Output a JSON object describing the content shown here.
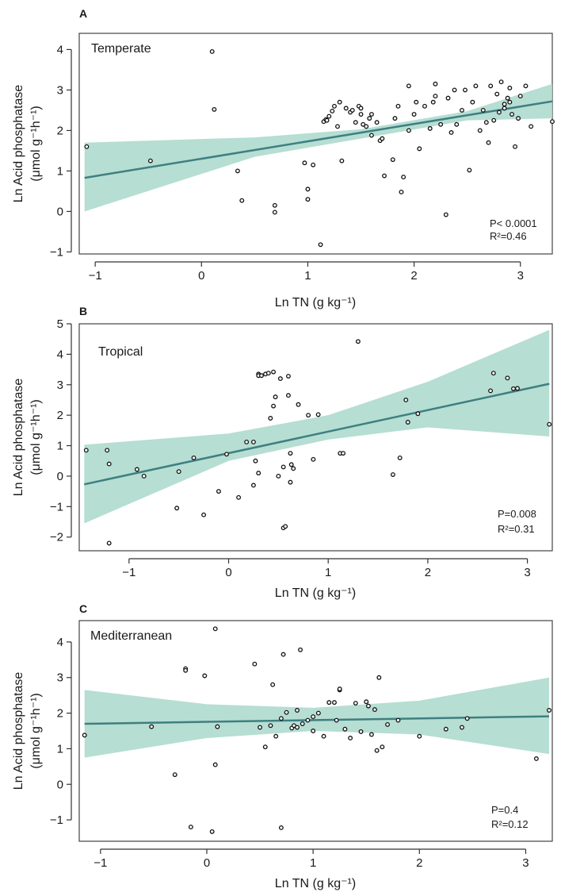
{
  "chart_data": [
    {
      "type": "scatter",
      "panel_letter": "A",
      "region_label": "Temperate",
      "xlabel": "Ln TN (g kg⁻¹)",
      "ylabel_line1": "Ln Acid phosphatase",
      "ylabel_line2": "(μmol g⁻¹h⁻¹)",
      "xlim": [
        -1.15,
        3.3
      ],
      "ylim": [
        -1.05,
        4.4
      ],
      "x_ticks": [
        -1,
        0,
        1,
        2,
        3
      ],
      "y_ticks": [
        -1,
        0,
        1,
        2,
        3,
        4
      ],
      "stat_p": "P< 0.0001",
      "stat_r2": "R²=0.46",
      "fit": {
        "x0": -1.1,
        "y0": 0.83,
        "x1": 3.3,
        "y1": 2.72
      },
      "ci_upper": [
        [
          -1.1,
          1.7
        ],
        [
          0.5,
          1.83
        ],
        [
          1.5,
          2.03
        ],
        [
          2.5,
          2.48
        ],
        [
          3.3,
          3.15
        ]
      ],
      "ci_lower": [
        [
          -1.1,
          0.0
        ],
        [
          0.5,
          1.35
        ],
        [
          1.5,
          1.8
        ],
        [
          2.5,
          2.25
        ],
        [
          3.3,
          2.3
        ]
      ],
      "grid": false,
      "points": {
        "x": [
          -1.08,
          -0.48,
          0.1,
          0.12,
          0.34,
          0.38,
          0.69,
          0.69,
          0.97,
          1.0,
          1.0,
          1.05,
          1.12,
          1.15,
          1.17,
          1.18,
          1.2,
          1.23,
          1.25,
          1.28,
          1.32,
          1.36,
          1.4,
          1.42,
          1.45,
          1.48,
          1.5,
          1.52,
          1.55,
          1.58,
          1.6,
          1.65,
          1.68,
          1.7,
          1.72,
          1.8,
          1.82,
          1.85,
          1.88,
          1.9,
          1.95,
          2.0,
          2.02,
          2.05,
          2.1,
          2.15,
          2.18,
          2.2,
          2.25,
          2.3,
          2.32,
          2.35,
          2.38,
          2.45,
          2.48,
          2.52,
          2.55,
          2.58,
          2.62,
          2.65,
          2.68,
          2.72,
          2.75,
          2.78,
          2.8,
          2.82,
          2.85,
          2.88,
          2.9,
          2.92,
          2.95,
          2.98,
          3.0,
          3.05,
          3.1,
          3.3,
          2.7,
          2.4,
          2.2,
          1.95,
          1.3,
          1.5,
          1.6,
          2.85,
          2.9
        ],
        "y": [
          1.6,
          1.25,
          3.95,
          2.52,
          1.0,
          0.27,
          0.15,
          -0.02,
          1.2,
          0.55,
          0.3,
          1.15,
          -0.82,
          2.22,
          2.27,
          2.25,
          2.35,
          2.48,
          2.6,
          2.1,
          1.25,
          2.55,
          2.45,
          2.5,
          2.2,
          2.6,
          2.4,
          2.15,
          2.1,
          2.3,
          2.4,
          2.2,
          1.75,
          1.8,
          0.88,
          1.28,
          2.3,
          2.6,
          0.48,
          0.85,
          2.0,
          2.4,
          2.7,
          1.55,
          2.6,
          2.05,
          2.7,
          2.85,
          2.15,
          -0.08,
          2.8,
          1.95,
          3.0,
          2.5,
          3.0,
          1.02,
          2.7,
          3.1,
          2.0,
          2.5,
          2.2,
          3.1,
          2.25,
          2.9,
          2.45,
          3.2,
          2.55,
          2.8,
          2.7,
          2.4,
          1.6,
          2.3,
          2.85,
          3.1,
          2.1,
          2.22,
          1.7,
          2.15,
          3.15,
          3.1,
          2.7,
          2.55,
          1.88,
          2.65,
          3.05
        ]
      }
    },
    {
      "type": "scatter",
      "panel_letter": "B",
      "region_label": "Tropical",
      "xlabel": "Ln TN (g kg⁻¹)",
      "ylabel_line1": "Ln Acid phosphatase",
      "ylabel_line2": "(μmol g⁻¹h⁻¹)",
      "xlim": [
        -1.5,
        3.25
      ],
      "ylim": [
        -2.45,
        5.0
      ],
      "x_ticks": [
        -1,
        0,
        1,
        2,
        3
      ],
      "y_ticks": [
        -2,
        -1,
        0,
        1,
        2,
        3,
        4,
        5
      ],
      "stat_p": "P=0.008",
      "stat_r2": "R²=0.31",
      "fit": {
        "x0": -1.45,
        "y0": -0.27,
        "x1": 3.22,
        "y1": 3.03
      },
      "ci_upper": [
        [
          -1.45,
          1.03
        ],
        [
          0.0,
          1.4
        ],
        [
          1.0,
          2.0
        ],
        [
          2.0,
          3.1
        ],
        [
          3.22,
          4.8
        ]
      ],
      "ci_lower": [
        [
          -1.45,
          -1.55
        ],
        [
          0.0,
          0.5
        ],
        [
          1.0,
          1.2
        ],
        [
          2.0,
          1.6
        ],
        [
          3.22,
          1.3
        ]
      ],
      "grid": false,
      "points": {
        "x": [
          -1.43,
          -1.22,
          -1.2,
          -1.2,
          -0.92,
          -0.85,
          -0.52,
          -0.5,
          -0.35,
          -0.25,
          -0.1,
          -0.02,
          0.1,
          0.18,
          0.25,
          0.25,
          0.27,
          0.3,
          0.3,
          0.3,
          0.33,
          0.37,
          0.4,
          0.42,
          0.45,
          0.45,
          0.47,
          0.5,
          0.55,
          0.57,
          0.6,
          0.62,
          0.62,
          0.63,
          0.65,
          0.7,
          0.8,
          0.85,
          0.9,
          1.12,
          1.15,
          1.3,
          1.65,
          1.72,
          1.78,
          1.8,
          1.9,
          2.63,
          2.66,
          2.8,
          2.86,
          2.9,
          3.22,
          0.52,
          0.55,
          0.6
        ],
        "y": [
          0.85,
          0.85,
          0.4,
          -2.2,
          0.22,
          0.0,
          -1.05,
          0.15,
          0.6,
          -1.27,
          -0.5,
          0.72,
          -0.7,
          1.12,
          1.12,
          -0.3,
          0.5,
          0.1,
          3.35,
          3.3,
          3.3,
          3.35,
          3.38,
          1.9,
          2.3,
          3.42,
          2.6,
          0.0,
          -1.7,
          -1.65,
          3.28,
          0.75,
          -0.2,
          0.38,
          0.25,
          2.35,
          2.0,
          0.55,
          2.02,
          0.75,
          0.75,
          4.42,
          0.05,
          0.6,
          2.5,
          1.77,
          2.05,
          2.8,
          3.38,
          3.22,
          2.87,
          2.88,
          1.7,
          3.2,
          0.3,
          2.65
        ]
      }
    },
    {
      "type": "scatter",
      "panel_letter": "C",
      "region_label": "Mediterranean",
      "xlabel": "Ln TN (g kg⁻¹)",
      "ylabel_line1": "Ln Acid phosphatase",
      "ylabel_line2": "(μmol g⁻¹h⁻¹)",
      "xlim": [
        -1.2,
        3.25
      ],
      "ylim": [
        -1.6,
        4.6
      ],
      "x_ticks": [
        -1,
        0,
        1,
        2,
        3
      ],
      "y_ticks": [
        -1,
        0,
        1,
        2,
        3,
        4
      ],
      "stat_p": "P=0.4",
      "stat_r2": "R²=0.12",
      "fit": {
        "x0": -1.15,
        "y0": 1.7,
        "x1": 3.22,
        "y1": 1.91
      },
      "ci_upper": [
        [
          -1.15,
          2.65
        ],
        [
          0.0,
          2.25
        ],
        [
          1.0,
          2.15
        ],
        [
          2.0,
          2.35
        ],
        [
          3.22,
          3.0
        ]
      ],
      "ci_lower": [
        [
          -1.15,
          0.75
        ],
        [
          0.0,
          1.3
        ],
        [
          1.0,
          1.5
        ],
        [
          2.0,
          1.4
        ],
        [
          3.22,
          0.85
        ]
      ],
      "grid": false,
      "points": {
        "x": [
          -1.15,
          -0.52,
          -0.3,
          -0.2,
          -0.2,
          -0.15,
          -0.02,
          0.05,
          0.08,
          0.08,
          0.1,
          0.45,
          0.5,
          0.55,
          0.6,
          0.62,
          0.65,
          0.7,
          0.72,
          0.75,
          0.8,
          0.82,
          0.85,
          0.88,
          0.9,
          0.95,
          1.0,
          1.05,
          1.1,
          1.15,
          1.2,
          1.22,
          1.25,
          1.25,
          1.3,
          1.35,
          1.4,
          1.45,
          1.5,
          1.52,
          1.55,
          1.58,
          1.6,
          1.62,
          1.65,
          1.7,
          1.8,
          2.0,
          2.25,
          2.4,
          2.45,
          3.1,
          3.22,
          0.7,
          0.85,
          1.0
        ],
        "y": [
          1.38,
          1.62,
          0.27,
          3.25,
          3.2,
          -1.2,
          3.05,
          -1.33,
          4.37,
          0.55,
          1.62,
          3.38,
          1.6,
          1.05,
          1.65,
          2.8,
          1.35,
          -1.22,
          3.65,
          2.02,
          1.58,
          1.65,
          2.08,
          3.78,
          1.7,
          1.8,
          1.5,
          2.0,
          1.35,
          2.3,
          2.3,
          1.8,
          2.65,
          2.68,
          1.55,
          1.3,
          2.28,
          1.48,
          2.32,
          2.2,
          1.4,
          2.1,
          0.95,
          3.0,
          1.05,
          1.68,
          1.8,
          1.35,
          1.55,
          1.6,
          1.85,
          0.72,
          2.08,
          1.85,
          1.6,
          1.9
        ]
      }
    }
  ]
}
